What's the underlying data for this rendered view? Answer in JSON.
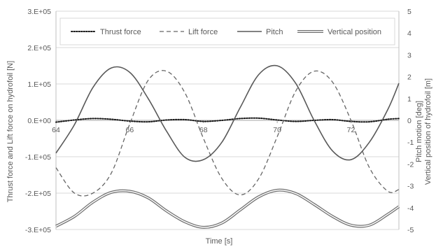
{
  "chart_data": {
    "type": "line",
    "xlabel": "Time [s]",
    "ylabel_left": "Thrust force and Lift force on hydrofoil [N]",
    "ylabel_right_1": "Pitch motion [deg]",
    "ylabel_right_2": "Vertical position of hydrofoil [m]",
    "xlim": [
      64,
      73.3
    ],
    "x_ticks": [
      "64",
      "66",
      "68",
      "70",
      "72"
    ],
    "x_tick_values": [
      64,
      66,
      68,
      70,
      72
    ],
    "ylim_left": [
      -300000,
      300000
    ],
    "y_left_ticks": [
      "3.E+05",
      "2.E+05",
      "1.E+05",
      "0.E+00",
      "-1.E+05",
      "-2.E+05",
      "-3.E+05"
    ],
    "y_left_tick_values": [
      300000,
      200000,
      100000,
      0,
      -100000,
      -200000,
      -300000
    ],
    "ylim_right": [
      -5,
      5
    ],
    "y_right_ticks": [
      "5",
      "4",
      "3",
      "2",
      "1",
      "0",
      "-1",
      "-2",
      "-3",
      "-4",
      "-5"
    ],
    "y_right_tick_values": [
      5,
      4,
      3,
      2,
      1,
      0,
      -1,
      -2,
      -3,
      -4,
      -5
    ],
    "grid": "horizontal",
    "legend_position": "top",
    "series": [
      {
        "name": "Thrust force",
        "axis": "left",
        "style": "dotted",
        "color": "#1a1a1a",
        "x": [
          64,
          64.5,
          65,
          65.5,
          66,
          66.5,
          67,
          67.5,
          68,
          68.5,
          69,
          69.5,
          70,
          70.5,
          71,
          71.5,
          72,
          72.5,
          73,
          73.3
        ],
        "values": [
          -5000,
          1000,
          5000,
          3000,
          -2000,
          -4000,
          1000,
          2000,
          -3000,
          0,
          5000,
          6000,
          1000,
          -3000,
          0,
          2000,
          -3000,
          -4000,
          3000,
          5000
        ]
      },
      {
        "name": "Lift force",
        "axis": "left",
        "style": "dashed",
        "color": "#666666",
        "x": [
          64,
          64.5,
          65,
          65.5,
          66,
          66.5,
          67,
          67.5,
          68,
          68.5,
          69,
          69.5,
          70,
          70.5,
          71,
          71.5,
          72,
          72.5,
          73,
          73.3
        ],
        "values": [
          -130000,
          -200000,
          -200000,
          -145000,
          -10000,
          110000,
          135000,
          75000,
          -50000,
          -160000,
          -205000,
          -160000,
          -45000,
          80000,
          135000,
          105000,
          0,
          -130000,
          -195000,
          -190000
        ]
      },
      {
        "name": "Pitch",
        "axis": "right",
        "style": "solid",
        "color": "#595959",
        "x": [
          64,
          64.5,
          65,
          65.5,
          66,
          66.5,
          67,
          67.5,
          68,
          68.5,
          69,
          69.5,
          70,
          70.5,
          71,
          71.5,
          72,
          72.5,
          73,
          73.3
        ],
        "values": [
          -1.5,
          -0.2,
          1.5,
          2.4,
          2.2,
          1.0,
          -0.5,
          -1.7,
          -1.8,
          -1.0,
          0.6,
          2.1,
          2.5,
          1.7,
          0.0,
          -1.4,
          -1.8,
          -1.0,
          0.5,
          1.7
        ]
      },
      {
        "name": "Vertical position",
        "axis": "right",
        "style": "double",
        "color": "#707070",
        "x": [
          64,
          64.5,
          65,
          65.5,
          66,
          66.5,
          67,
          67.5,
          68,
          68.5,
          69,
          69.5,
          70,
          70.5,
          71,
          71.5,
          72,
          72.5,
          73,
          73.3
        ],
        "values": [
          -4.85,
          -4.4,
          -3.75,
          -3.3,
          -3.25,
          -3.55,
          -4.15,
          -4.65,
          -4.9,
          -4.7,
          -4.1,
          -3.5,
          -3.2,
          -3.35,
          -3.85,
          -4.4,
          -4.8,
          -4.8,
          -4.3,
          -3.95
        ]
      }
    ]
  }
}
